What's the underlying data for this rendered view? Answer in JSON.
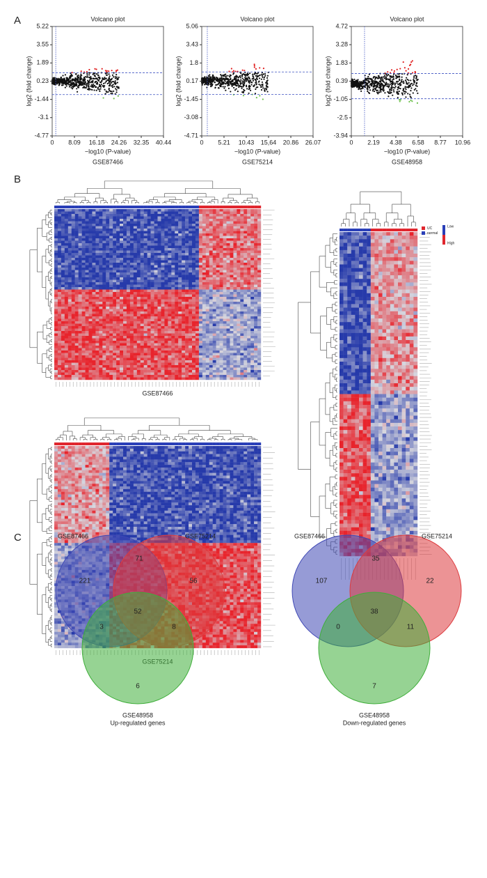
{
  "panel_labels": [
    "A",
    "B",
    "C"
  ],
  "chart_data": [
    {
      "type": "scatter",
      "title": "Volcano plot",
      "x_label": "−log10 (P-value)",
      "y_label": "log2 (fold change)",
      "caption": "GSE87466",
      "xlim": [
        0,
        40.44
      ],
      "xticks": [
        0,
        8.09,
        16.18,
        24.26,
        32.35,
        40.44
      ],
      "ylim": [
        -4.77,
        5.22
      ],
      "yticks": [
        -4.77,
        -3.1,
        -1.44,
        0.23,
        1.89,
        3.55,
        5.22
      ],
      "hlines": [
        1,
        -1
      ],
      "vline": 1.3
    },
    {
      "type": "scatter",
      "title": "Volcano plot",
      "x_label": "−log10 (P-value)",
      "y_label": "log2 (fold change)",
      "caption": "GSE75214",
      "xlim": [
        0,
        26.07
      ],
      "xticks": [
        0,
        5.21,
        10.43,
        {
          "value": 15.64,
          "label": "15,64"
        },
        20.86,
        26.07
      ],
      "ylim": [
        -4.71,
        5.06
      ],
      "yticks": [
        -4.71,
        -3.08,
        -1.45,
        0.17,
        1.8,
        3.43,
        5.06
      ],
      "hlines": [
        1,
        -1
      ],
      "vline": 1.3
    },
    {
      "type": "scatter",
      "title": "Volcano plot",
      "x_label": "−log10 (P-value)",
      "y_label": "log2 (fold change)",
      "caption": "GSE48958",
      "xlim": [
        0,
        10.96
      ],
      "xticks": [
        0,
        2.19,
        4.38,
        6.58,
        8.77,
        10.96
      ],
      "ylim": [
        -3.94,
        4.72
      ],
      "yticks": [
        -3.94,
        -2.5,
        -1.05,
        0.39,
        1.83,
        3.28,
        4.72
      ],
      "hlines": [
        1,
        -1
      ],
      "vline": 1.3
    },
    {
      "type": "heatmap",
      "caption": "GSE87466"
    },
    {
      "type": "heatmap",
      "caption": "GSE75214"
    },
    {
      "type": "heatmap",
      "groups": [
        "UC",
        "normal"
      ],
      "scale": [
        "Low",
        "High"
      ]
    },
    {
      "type": "venn",
      "sets": [
        "GSE87466",
        "GSE75214",
        "GSE48958"
      ],
      "caption": "Up-regulated genes",
      "colors": [
        "#3f48b5",
        "#dd3b3e",
        "#3fae3a"
      ],
      "regions": {
        "A": 221,
        "B": 56,
        "C": 6,
        "AB": 71,
        "AC": 3,
        "BC": 8,
        "ABC": 52
      }
    },
    {
      "type": "venn",
      "sets": [
        "GSE87466",
        "GSE75214",
        "GSE48958"
      ],
      "caption": "Down-regulated genes",
      "colors": [
        "#3f48b5",
        "#dd3b3e",
        "#3fae3a"
      ],
      "regions": {
        "A": 107,
        "B": 22,
        "C": 7,
        "AB": 35,
        "AC": 0,
        "BC": 11,
        "ABC": 38
      }
    }
  ]
}
